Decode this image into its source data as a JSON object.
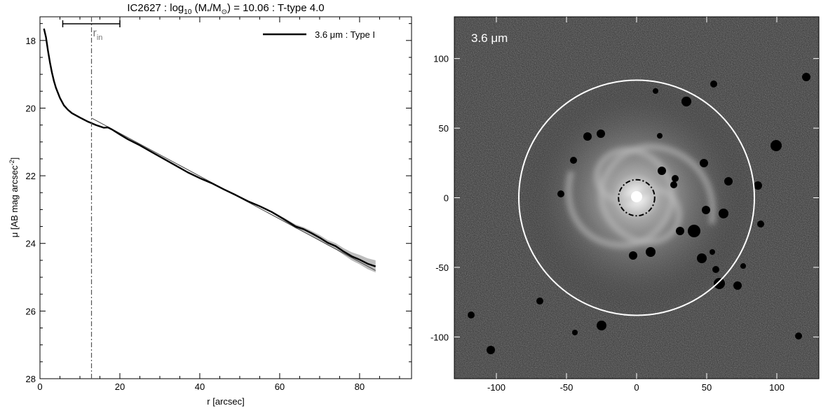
{
  "chart_data": [
    {
      "type": "line",
      "title_parts": {
        "galaxy": "IC2627 : log",
        "log_sub": "10",
        "mass_open": " (M",
        "mass_sub1": "*",
        "mass_mid": "/M",
        "mass_sub2": "⊙",
        "mass_value": ") = 10.06 : T-type 4.0"
      },
      "xlabel": "r [arcsec]",
      "ylabel_main": "μ [AB mag arcsec",
      "ylabel_sup": "-2",
      "ylabel_close": "]",
      "xlim": [
        0,
        93
      ],
      "ylim": [
        28,
        17.3
      ],
      "y_inverted": true,
      "xticks": [
        0,
        20,
        40,
        60,
        80
      ],
      "xtick_labels": [
        "0",
        "20",
        "40",
        "60",
        "80"
      ],
      "yticks": [
        18,
        20,
        22,
        24,
        26,
        28
      ],
      "ytick_labels": [
        "18",
        "20",
        "22",
        "24",
        "26",
        "28"
      ],
      "legend": {
        "position": "top-right",
        "label": "3.6 μm : Type I"
      },
      "series": [
        {
          "name": "3.6 μm : Type I",
          "color": "#000000",
          "x": [
            1.0,
            1.5,
            2.0,
            2.5,
            3.0,
            3.5,
            4.0,
            5.0,
            6.0,
            7.0,
            8.0,
            10.0,
            12.0,
            14.0,
            16.0,
            17.0,
            18.0,
            20.0,
            22.0,
            25.0,
            28.0,
            31.0,
            34.0,
            37.0,
            40.0,
            43.0,
            46.0,
            49.0,
            52.0,
            55.0,
            58.0,
            61.0,
            64.0,
            66.0,
            68.0,
            70.0,
            72.0,
            74.0,
            76.0,
            78.0,
            80.0,
            82.0,
            84.0
          ],
          "y": [
            17.65,
            17.9,
            18.3,
            18.65,
            18.95,
            19.2,
            19.4,
            19.7,
            19.92,
            20.05,
            20.15,
            20.28,
            20.4,
            20.5,
            20.58,
            20.57,
            20.63,
            20.78,
            20.92,
            21.1,
            21.3,
            21.5,
            21.7,
            21.9,
            22.07,
            22.22,
            22.4,
            22.57,
            22.75,
            22.9,
            23.07,
            23.28,
            23.5,
            23.58,
            23.7,
            23.83,
            23.98,
            24.08,
            24.24,
            24.38,
            24.48,
            24.6,
            24.68
          ],
          "uncertainty": [
            0,
            0,
            0,
            0,
            0,
            0,
            0,
            0,
            0,
            0,
            0,
            0,
            0,
            0,
            0,
            0,
            0,
            0,
            0,
            0,
            0,
            0,
            0,
            0,
            0,
            0,
            0,
            0,
            0,
            0,
            0.02,
            0.04,
            0.06,
            0.06,
            0.07,
            0.08,
            0.08,
            0.09,
            0.1,
            0.12,
            0.14,
            0.16,
            0.18
          ]
        },
        {
          "name": "fit",
          "color": "#444444",
          "x": [
            13.0,
            84.0
          ],
          "y": [
            20.3,
            24.8
          ]
        }
      ],
      "annotations": {
        "r_in": {
          "label_main": "r",
          "label_sub": "in",
          "x": 12.9
        },
        "r_in_bar": {
          "x": [
            5.7,
            20.0
          ],
          "y": 17.45
        }
      }
    },
    {
      "type": "image",
      "label": "3.6 μm",
      "xlim": [
        -130,
        130
      ],
      "ylim": [
        -130,
        130
      ],
      "xticks": [
        -100,
        -50,
        0,
        50,
        100
      ],
      "xtick_labels": [
        "-100",
        "-50",
        "0",
        "50",
        "100"
      ],
      "yticks": [
        -100,
        -50,
        0,
        50,
        100
      ],
      "ytick_labels": [
        "-100",
        "-50",
        "0",
        "50",
        "100"
      ],
      "outer_circle_radius": 84,
      "inner_circle_radius": 12.9
    }
  ]
}
